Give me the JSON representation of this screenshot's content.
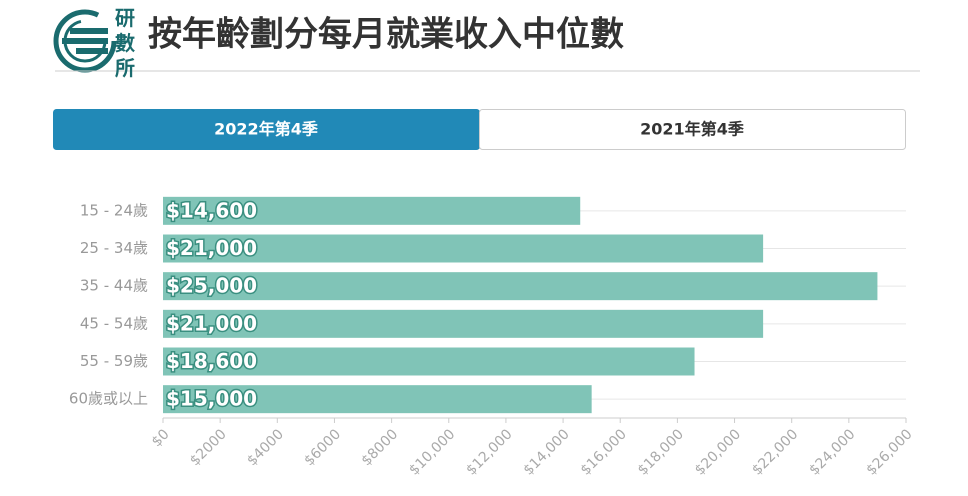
{
  "logo": "研數所",
  "tabs": [
    "2022年第4季",
    "2021年第4季"
  ],
  "chart_data": {
    "type": "hbar",
    "title": "按年齡劃分每月就業收入中位數",
    "categories": [
      "15 - 24歲",
      "25 - 34歲",
      "35 - 44歲",
      "45 - 54歲",
      "55 - 59歲",
      "60歲或以上"
    ],
    "values": [
      14600,
      21000,
      25000,
      21000,
      18600,
      15000
    ],
    "value_labels": [
      "$14,600",
      "$21,000",
      "$25,000",
      "$21,000",
      "$18,600",
      "$15,000"
    ],
    "color": "#80c4b7",
    "xlim": [
      0,
      26000
    ],
    "xticks": [
      {
        "value": 0,
        "label": "$0"
      },
      {
        "value": 2000,
        "label": "$2000"
      },
      {
        "value": 4000,
        "label": "$4000"
      },
      {
        "value": 6000,
        "label": "$6000"
      },
      {
        "value": 8000,
        "label": "$8000"
      },
      {
        "value": 10000,
        "label": "$10,000"
      },
      {
        "value": 12000,
        "label": "$12,000"
      },
      {
        "value": 14000,
        "label": "$14,000"
      },
      {
        "value": 16000,
        "label": "$16,000"
      },
      {
        "value": 18000,
        "label": "$18,000"
      },
      {
        "value": 20000,
        "label": "$20,000"
      },
      {
        "value": 22000,
        "label": "$22,000"
      },
      {
        "value": 24000,
        "label": "$24,000"
      },
      {
        "value": 26000,
        "label": "$26,000"
      }
    ],
    "grid": true
  }
}
